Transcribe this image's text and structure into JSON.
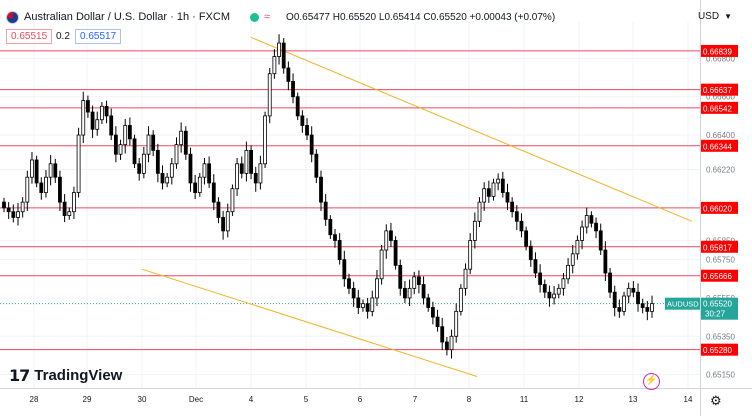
{
  "header": {
    "title": "Australian Dollar / U.S. Dollar · 1h · FXCM",
    "ohlc": "O0.65477 H0.65520 L0.65414 C0.65520 +0.00043 (+0.07%)",
    "wave_icon": "wave-icon"
  },
  "trade": {
    "sell_price": "0.65515",
    "spread": "0.2",
    "buy_price": "0.65517"
  },
  "currency": "USD",
  "branding": {
    "logo_mark": "17",
    "logo_text": "TradingView"
  },
  "colors": {
    "up": "#26a69a",
    "down": "#ef5350",
    "candle": "#000000",
    "hline": "#e84a5f",
    "trend": "#f0b429",
    "current": "#26a69a"
  },
  "chart_data": {
    "type": "candlestick",
    "symbol": "AUDUSD",
    "y_axis": {
      "ylim": [
        0.6508,
        0.6699
      ],
      "ticks": [
        "0.66800",
        "0.66600",
        "0.66400",
        "0.66220",
        "0.65850",
        "0.65750",
        "0.65550",
        "0.65350",
        "0.65150"
      ]
    },
    "x_axis": {
      "ticks": [
        "28",
        "29",
        "30",
        "Dec",
        "4",
        "5",
        "6",
        "7",
        "8",
        "11",
        "12",
        "13",
        "14"
      ]
    },
    "horizontal_levels": [
      "0.66839",
      "0.66637",
      "0.66542",
      "0.66344",
      "0.66020",
      "0.65817",
      "0.65666",
      "0.65280"
    ],
    "current_price": {
      "label": "AUDUSD",
      "value": "0.65520",
      "countdown": "30:27"
    },
    "trendlines": [
      {
        "from": [
          "4",
          0.6691
        ],
        "to": [
          "14",
          0.6595
        ]
      },
      {
        "from": [
          "30",
          0.657
        ],
        "to": [
          "8",
          0.6514
        ]
      }
    ],
    "approx_close_path": [
      0.6602,
      0.66,
      0.6597,
      0.66,
      0.6605,
      0.6618,
      0.6627,
      0.6615,
      0.661,
      0.6618,
      0.6625,
      0.6618,
      0.6605,
      0.6598,
      0.66,
      0.661,
      0.664,
      0.6658,
      0.6652,
      0.6643,
      0.6648,
      0.6655,
      0.665,
      0.664,
      0.663,
      0.6635,
      0.6645,
      0.6638,
      0.6625,
      0.662,
      0.663,
      0.664,
      0.6632,
      0.662,
      0.6615,
      0.6618,
      0.6625,
      0.6635,
      0.6642,
      0.663,
      0.6615,
      0.661,
      0.6618,
      0.6625,
      0.6615,
      0.6605,
      0.6597,
      0.659,
      0.66,
      0.6612,
      0.6625,
      0.662,
      0.6632,
      0.662,
      0.6615,
      0.6625,
      0.665,
      0.6672,
      0.6681,
      0.6688,
      0.6675,
      0.6668,
      0.666,
      0.665,
      0.6645,
      0.664,
      0.663,
      0.6618,
      0.6605,
      0.6596,
      0.6588,
      0.6585,
      0.6575,
      0.6565,
      0.656,
      0.6555,
      0.655,
      0.6552,
      0.6548,
      0.6555,
      0.6565,
      0.658,
      0.659,
      0.6585,
      0.6572,
      0.656,
      0.6555,
      0.656,
      0.6566,
      0.6562,
      0.6555,
      0.655,
      0.6545,
      0.654,
      0.6532,
      0.6528,
      0.6535,
      0.6548,
      0.656,
      0.657,
      0.6585,
      0.6595,
      0.6605,
      0.6612,
      0.6608,
      0.6615,
      0.6617,
      0.661,
      0.6605,
      0.66,
      0.6595,
      0.659,
      0.6582,
      0.6575,
      0.6568,
      0.6562,
      0.6558,
      0.6555,
      0.6557,
      0.656,
      0.6565,
      0.6572,
      0.6578,
      0.6585,
      0.6592,
      0.6598,
      0.6594,
      0.659,
      0.658,
      0.6568,
      0.6558,
      0.655,
      0.6548,
      0.6556,
      0.656,
      0.6558,
      0.6552,
      0.655,
      0.6548,
      0.6552
    ]
  }
}
